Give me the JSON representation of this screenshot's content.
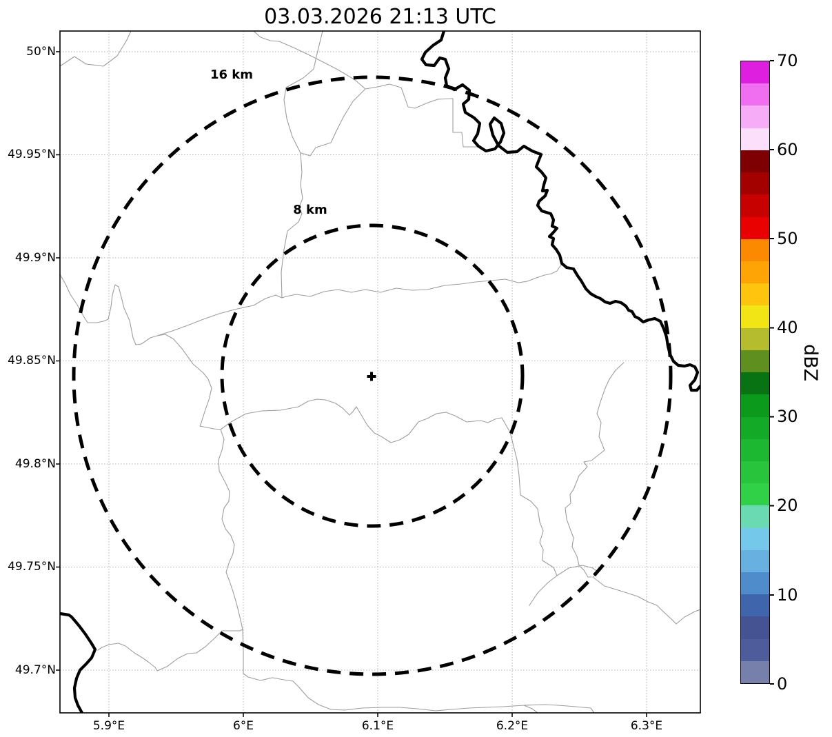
{
  "title": "03.03.2026 21:13 UTC",
  "map": {
    "range_rings": [
      {
        "label": "16 km",
        "radius_km": 16
      },
      {
        "label": "8 km",
        "radius_km": 8
      }
    ],
    "center_marker": "+"
  },
  "axes": {
    "y_tick_labels": [
      "50°N",
      "49.95°N",
      "49.9°N",
      "49.85°N",
      "49.8°N",
      "49.75°N",
      "49.7°N"
    ],
    "x_tick_labels": [
      "5.9°E",
      "6°E",
      "6.1°E",
      "6.2°E",
      "6.3°E"
    ]
  },
  "colorbar": {
    "label": "dBZ",
    "tick_labels": [
      "70",
      "60",
      "50",
      "40",
      "30",
      "20",
      "10",
      "0"
    ],
    "min_dbz": 0,
    "max_dbz": 70,
    "segment_step_dbz": 2.5,
    "colors_ascending": [
      "#7680AA",
      "#4E5C9B",
      "#455393",
      "#3F65AC",
      "#4E8CCC",
      "#67B0DF",
      "#74C8E9",
      "#69DAB2",
      "#31D147",
      "#27C43C",
      "#1CB831",
      "#12AA26",
      "#0C9A1D",
      "#077313",
      "#5E8F1F",
      "#B5BC2E",
      "#F2E516",
      "#FFC40E",
      "#FFA405",
      "#FB8A00",
      "#E90000",
      "#C70000",
      "#A30000",
      "#7E0003",
      "#FBDFFB",
      "#F6ACF6",
      "#F06FF0",
      "#DF1FDF"
    ]
  },
  "chart_data": {
    "type": "map",
    "title": "03.03.2026 21:13 UTC",
    "map_kind": "weather radar reflectivity view with range rings over boundary base map",
    "extent": {
      "lon_min_deg_e": 5.864,
      "lon_max_deg_e": 6.34,
      "lat_min_deg_n": 49.679,
      "lat_max_deg_n": 50.009
    },
    "grid": {
      "lon_ticks_deg_e": [
        5.9,
        6.0,
        6.1,
        6.2,
        6.3
      ],
      "lat_ticks_deg_n": [
        50.0,
        49.95,
        49.9,
        49.85,
        49.8,
        49.75,
        49.7
      ],
      "style": "dotted"
    },
    "radar_site": {
      "lon_deg_e": 6.096,
      "lat_deg_n": 49.843,
      "marker": "+"
    },
    "range_rings_km": [
      8,
      16
    ],
    "reflectivity_echoes": "none visible (no colored radar echoes on map)",
    "colorbar": {
      "label": "dBZ",
      "range": [
        0,
        70
      ],
      "tick_step": 10,
      "segment_step_dbz": 2.5
    }
  }
}
